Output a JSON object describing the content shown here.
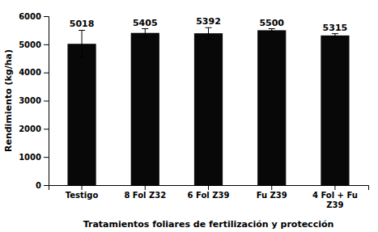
{
  "chart_data": {
    "type": "bar",
    "categories": [
      "Testigo",
      "8 Fol Z32",
      "6 Fol Z39",
      "Fu Z39",
      "4 Fol + Fu\nZ39"
    ],
    "values": [
      5018,
      5405,
      5392,
      5500,
      5315
    ],
    "errors": [
      480,
      150,
      200,
      55,
      65
    ],
    "color": "#080808",
    "xlabel": "Tratamientos foliares de fertilización y protección",
    "ylabel": "Rendimiento (kg/ha)",
    "ylim": [
      0,
      6000
    ],
    "yticks": [
      0,
      1000,
      2000,
      3000,
      4000,
      5000,
      6000
    ],
    "data_labels": true,
    "grid": false
  }
}
